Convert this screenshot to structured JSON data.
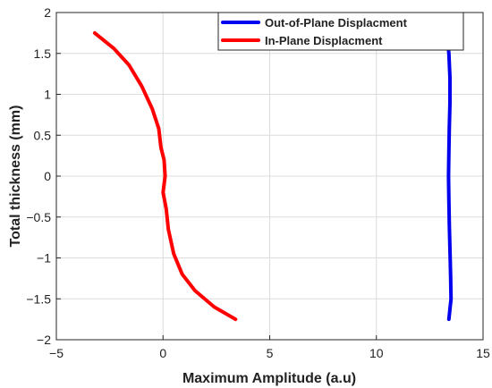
{
  "chart_data": {
    "type": "line",
    "title": "",
    "xlabel": "Maximum Amplitude (a.u)",
    "ylabel": "Total thickness (mm)",
    "xlim": [
      -5,
      15
    ],
    "ylim": [
      -2,
      2
    ],
    "xticks": [
      -5,
      0,
      5,
      10,
      15
    ],
    "yticks": [
      -2,
      -1.5,
      -1,
      -0.5,
      0,
      0.5,
      1,
      1.5,
      2
    ],
    "xtick_labels": [
      "−5",
      "0",
      "5",
      "10",
      "15"
    ],
    "ytick_labels": [
      "−2",
      "−1.5",
      "−1",
      "−0.5",
      "0",
      "0.5",
      "1",
      "1.5",
      "2"
    ],
    "grid": true,
    "legend_position": "top-right",
    "series": [
      {
        "name": "Out-of-Plane Displacment",
        "color": "#0000ee",
        "points": [
          [
            13.3,
            1.75
          ],
          [
            13.4,
            1.5
          ],
          [
            13.45,
            1.2
          ],
          [
            13.45,
            0.9
          ],
          [
            13.42,
            0.6
          ],
          [
            13.4,
            0.3
          ],
          [
            13.38,
            0.0
          ],
          [
            13.4,
            -0.3
          ],
          [
            13.42,
            -0.6
          ],
          [
            13.45,
            -0.9
          ],
          [
            13.48,
            -1.2
          ],
          [
            13.5,
            -1.5
          ],
          [
            13.4,
            -1.75
          ]
        ]
      },
      {
        "name": "In-Plane Displacment",
        "color": "#ff0000",
        "points": [
          [
            -3.2,
            1.75
          ],
          [
            -2.3,
            1.56
          ],
          [
            -1.6,
            1.36
          ],
          [
            -1.0,
            1.1
          ],
          [
            -0.5,
            0.82
          ],
          [
            -0.2,
            0.58
          ],
          [
            -0.1,
            0.35
          ],
          [
            0.05,
            0.2
          ],
          [
            0.1,
            0.0
          ],
          [
            0.0,
            -0.2
          ],
          [
            0.15,
            -0.4
          ],
          [
            0.25,
            -0.65
          ],
          [
            0.5,
            -0.95
          ],
          [
            0.9,
            -1.2
          ],
          [
            1.5,
            -1.4
          ],
          [
            2.4,
            -1.6
          ],
          [
            3.4,
            -1.75
          ]
        ]
      }
    ]
  }
}
